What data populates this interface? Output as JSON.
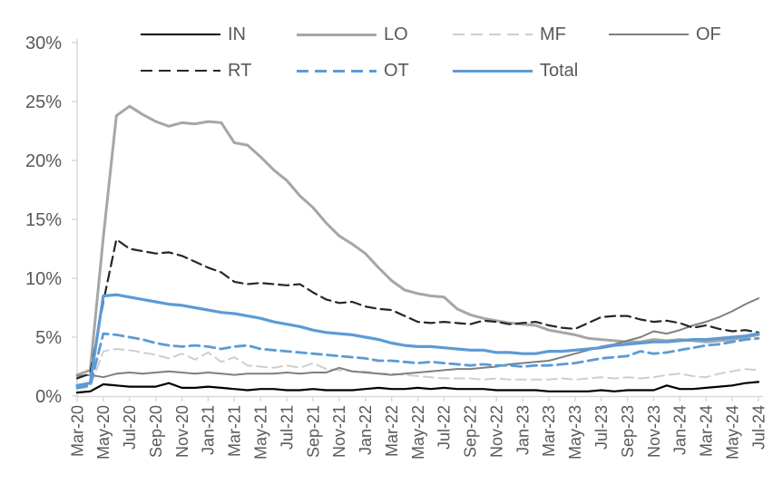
{
  "chart_data": {
    "type": "line",
    "title": "",
    "xlabel": "",
    "ylabel": "",
    "ylim": [
      0,
      30
    ],
    "y_tick_values": [
      0,
      5,
      10,
      15,
      20,
      25,
      30
    ],
    "y_tick_labels": [
      "0%",
      "5%",
      "10%",
      "15%",
      "20%",
      "25%",
      "30%"
    ],
    "grid": "off",
    "legend_position": "top",
    "x": [
      "Mar-20",
      "Apr-20",
      "May-20",
      "Jun-20",
      "Jul-20",
      "Aug-20",
      "Sep-20",
      "Oct-20",
      "Nov-20",
      "Dec-20",
      "Jan-21",
      "Feb-21",
      "Mar-21",
      "Apr-21",
      "May-21",
      "Jun-21",
      "Jul-21",
      "Aug-21",
      "Sep-21",
      "Oct-21",
      "Nov-21",
      "Dec-21",
      "Jan-22",
      "Feb-22",
      "Mar-22",
      "Apr-22",
      "May-22",
      "Jun-22",
      "Jul-22",
      "Aug-22",
      "Sep-22",
      "Oct-22",
      "Nov-22",
      "Dec-22",
      "Jan-23",
      "Feb-23",
      "Mar-23",
      "Apr-23",
      "May-23",
      "Jun-23",
      "Jul-23",
      "Aug-23",
      "Sep-23",
      "Oct-23",
      "Nov-23",
      "Dec-23",
      "Jan-24",
      "Feb-24",
      "Mar-24",
      "Apr-24",
      "May-24",
      "Jun-24",
      "Jul-24"
    ],
    "x_tick_labels": [
      "Mar-20",
      "May-20",
      "Jul-20",
      "Sep-20",
      "Nov-20",
      "Jan-21",
      "Mar-21",
      "May-21",
      "Jul-21",
      "Sep-21",
      "Nov-21",
      "Jan-22",
      "Mar-22",
      "May-22",
      "Jul-22",
      "Sep-22",
      "Nov-22",
      "Jan-23",
      "Mar-23",
      "May-23",
      "Jul-23",
      "Sep-23",
      "Nov-23",
      "Jan-24",
      "Mar-24",
      "May-24",
      "Jul-24"
    ],
    "axis_color": "#d9d9d9",
    "label_color": "#595959",
    "series": [
      {
        "name": "IN",
        "color": "#000000",
        "line_style": "solid",
        "width": 2.2,
        "values": [
          0.3,
          0.4,
          1.0,
          0.9,
          0.8,
          0.8,
          0.8,
          1.1,
          0.7,
          0.7,
          0.8,
          0.7,
          0.6,
          0.5,
          0.6,
          0.6,
          0.5,
          0.5,
          0.6,
          0.5,
          0.5,
          0.5,
          0.6,
          0.7,
          0.6,
          0.6,
          0.7,
          0.6,
          0.7,
          0.6,
          0.6,
          0.6,
          0.5,
          0.5,
          0.5,
          0.5,
          0.4,
          0.4,
          0.4,
          0.4,
          0.5,
          0.4,
          0.5,
          0.5,
          0.5,
          0.9,
          0.6,
          0.6,
          0.7,
          0.8,
          0.9,
          1.1,
          1.2
        ]
      },
      {
        "name": "LO",
        "color": "#a6a6a6",
        "line_style": "solid",
        "width": 3,
        "values": [
          1.8,
          2.2,
          13.5,
          23.8,
          24.6,
          23.9,
          23.3,
          22.9,
          23.2,
          23.1,
          23.3,
          23.2,
          21.5,
          21.3,
          20.3,
          19.2,
          18.3,
          17.0,
          16.0,
          14.7,
          13.6,
          12.9,
          12.1,
          10.9,
          9.8,
          9.0,
          8.7,
          8.5,
          8.4,
          7.4,
          6.9,
          6.6,
          6.4,
          6.2,
          6.1,
          6.0,
          5.6,
          5.4,
          5.2,
          4.9,
          4.8,
          4.7,
          4.6,
          4.6,
          4.8,
          4.7,
          4.8,
          4.7,
          4.6,
          4.7,
          4.8,
          5.0,
          5.2
        ]
      },
      {
        "name": "MF",
        "color": "#cfcecf",
        "line_style": "dashed",
        "width": 2,
        "values": [
          0.6,
          0.8,
          3.8,
          4.0,
          3.9,
          3.7,
          3.5,
          3.2,
          3.6,
          3.1,
          3.7,
          2.9,
          3.3,
          2.6,
          2.5,
          2.4,
          2.6,
          2.4,
          2.8,
          2.3,
          2.2,
          2.1,
          2.1,
          1.9,
          1.9,
          1.8,
          1.7,
          1.6,
          1.5,
          1.5,
          1.5,
          1.4,
          1.5,
          1.4,
          1.4,
          1.4,
          1.4,
          1.5,
          1.4,
          1.5,
          1.6,
          1.5,
          1.6,
          1.5,
          1.6,
          1.8,
          1.9,
          1.7,
          1.6,
          1.9,
          2.1,
          2.3,
          2.2
        ]
      },
      {
        "name": "OF",
        "color": "#7f7f7f",
        "line_style": "solid",
        "width": 2,
        "values": [
          1.7,
          1.8,
          1.6,
          1.9,
          2.0,
          1.9,
          2.0,
          2.1,
          2.0,
          1.9,
          2.0,
          1.9,
          1.8,
          1.9,
          1.9,
          1.9,
          2.0,
          1.9,
          2.0,
          2.0,
          2.4,
          2.1,
          2.0,
          1.9,
          1.8,
          1.9,
          2.0,
          2.1,
          2.2,
          2.3,
          2.3,
          2.4,
          2.5,
          2.7,
          2.8,
          2.9,
          3.0,
          3.3,
          3.6,
          3.9,
          4.2,
          4.4,
          4.7,
          5.0,
          5.5,
          5.3,
          5.6,
          6.0,
          6.3,
          6.7,
          7.2,
          7.8,
          8.3
        ]
      },
      {
        "name": "RT",
        "color": "#262626",
        "line_style": "dashed",
        "width": 2.2,
        "values": [
          1.5,
          1.9,
          8.0,
          13.3,
          12.5,
          12.3,
          12.1,
          12.2,
          11.9,
          11.4,
          10.9,
          10.5,
          9.7,
          9.5,
          9.6,
          9.5,
          9.4,
          9.5,
          8.8,
          8.2,
          7.9,
          8.0,
          7.6,
          7.4,
          7.3,
          6.8,
          6.3,
          6.2,
          6.3,
          6.2,
          6.1,
          6.4,
          6.3,
          6.1,
          6.2,
          6.3,
          6.0,
          5.8,
          5.7,
          6.2,
          6.7,
          6.8,
          6.8,
          6.5,
          6.3,
          6.4,
          6.2,
          5.8,
          6.0,
          5.7,
          5.5,
          5.6,
          5.4
        ]
      },
      {
        "name": "OT",
        "color": "#5b9bd5",
        "line_style": "dashed",
        "width": 2.8,
        "values": [
          0.7,
          0.9,
          5.3,
          5.2,
          5.0,
          4.8,
          4.5,
          4.3,
          4.2,
          4.3,
          4.2,
          4.0,
          4.2,
          4.3,
          4.0,
          3.9,
          3.8,
          3.7,
          3.6,
          3.5,
          3.4,
          3.3,
          3.2,
          3.0,
          3.0,
          2.9,
          2.8,
          2.9,
          2.8,
          2.7,
          2.6,
          2.7,
          2.6,
          2.6,
          2.5,
          2.6,
          2.6,
          2.7,
          2.8,
          3.0,
          3.2,
          3.3,
          3.4,
          3.8,
          3.6,
          3.7,
          3.9,
          4.1,
          4.3,
          4.4,
          4.6,
          4.8,
          4.9
        ]
      },
      {
        "name": "Total",
        "color": "#5b9bd5",
        "line_style": "solid",
        "width": 3.2,
        "values": [
          0.9,
          1.1,
          8.5,
          8.6,
          8.4,
          8.2,
          8.0,
          7.8,
          7.7,
          7.5,
          7.3,
          7.1,
          7.0,
          6.8,
          6.6,
          6.3,
          6.1,
          5.9,
          5.6,
          5.4,
          5.3,
          5.2,
          5.0,
          4.8,
          4.5,
          4.3,
          4.2,
          4.2,
          4.1,
          4.0,
          3.9,
          3.9,
          3.7,
          3.7,
          3.6,
          3.6,
          3.8,
          3.8,
          3.9,
          4.0,
          4.1,
          4.3,
          4.4,
          4.5,
          4.6,
          4.6,
          4.7,
          4.8,
          4.8,
          4.9,
          5.0,
          5.1,
          5.3
        ]
      }
    ]
  }
}
